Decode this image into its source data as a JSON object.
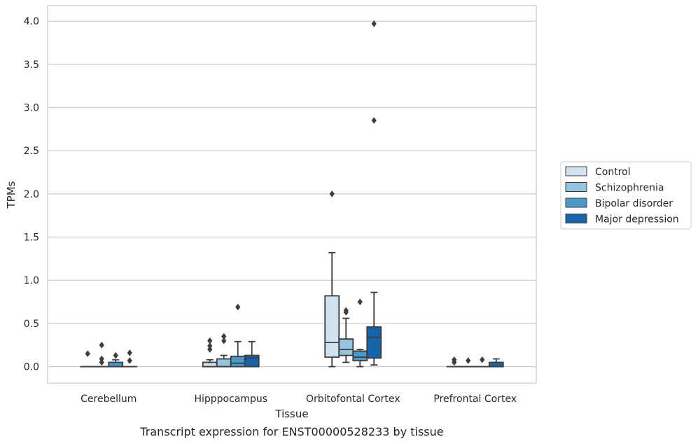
{
  "caption": "Transcript expression for ENST00000528233 by tissue",
  "chart_data": {
    "type": "box",
    "xlabel": "Tissue",
    "ylabel": "TPMs",
    "ylim": [
      -0.19,
      4.18
    ],
    "yticks": [
      0.0,
      0.5,
      1.0,
      1.5,
      2.0,
      2.5,
      3.0,
      3.5,
      4.0
    ],
    "ytick_labels": [
      "0.0",
      "0.5",
      "1.0",
      "1.5",
      "2.0",
      "2.5",
      "3.0",
      "3.5",
      "4.0"
    ],
    "grid": "horizontal",
    "legend_position": "right",
    "categories": [
      "Cerebellum",
      "Hipppocampus",
      "Orbitofontal Cortex",
      "Prefrontal Cortex"
    ],
    "series": [
      {
        "name": "Control",
        "color": "#d0e1f2",
        "boxes": [
          {
            "q1": 0.0,
            "median": 0.0,
            "q3": 0.0,
            "whisker_low": 0.0,
            "whisker_high": 0.0,
            "outliers": [
              0.15
            ]
          },
          {
            "q1": 0.0,
            "median": 0.0,
            "q3": 0.05,
            "whisker_low": 0.0,
            "whisker_high": 0.08,
            "outliers": [
              0.2,
              0.24,
              0.3
            ]
          },
          {
            "q1": 0.11,
            "median": 0.28,
            "q3": 0.82,
            "whisker_low": 0.0,
            "whisker_high": 1.32,
            "outliers": [
              2.0
            ]
          },
          {
            "q1": 0.0,
            "median": 0.0,
            "q3": 0.0,
            "whisker_low": 0.0,
            "whisker_high": 0.0,
            "outliers": [
              0.05,
              0.08
            ]
          }
        ]
      },
      {
        "name": "Schizophrenia",
        "color": "#94c4df",
        "boxes": [
          {
            "q1": 0.0,
            "median": 0.0,
            "q3": 0.0,
            "whisker_low": 0.0,
            "whisker_high": 0.0,
            "outliers": [
              0.05,
              0.09,
              0.25
            ]
          },
          {
            "q1": 0.0,
            "median": 0.0,
            "q3": 0.09,
            "whisker_low": 0.0,
            "whisker_high": 0.13,
            "outliers": [
              0.3,
              0.35
            ]
          },
          {
            "q1": 0.13,
            "median": 0.2,
            "q3": 0.32,
            "whisker_low": 0.05,
            "whisker_high": 0.56,
            "outliers": [
              0.63,
              0.65
            ]
          },
          {
            "q1": 0.0,
            "median": 0.0,
            "q3": 0.0,
            "whisker_low": 0.0,
            "whisker_high": 0.0,
            "outliers": [
              0.07
            ]
          }
        ]
      },
      {
        "name": "Bipolar disorder",
        "color": "#4a98c9",
        "boxes": [
          {
            "q1": 0.0,
            "median": 0.0,
            "q3": 0.05,
            "whisker_low": 0.0,
            "whisker_high": 0.08,
            "outliers": [
              0.13
            ]
          },
          {
            "q1": 0.0,
            "median": 0.04,
            "q3": 0.12,
            "whisker_low": 0.0,
            "whisker_high": 0.29,
            "outliers": [
              0.69
            ]
          },
          {
            "q1": 0.07,
            "median": 0.11,
            "q3": 0.18,
            "whisker_low": 0.0,
            "whisker_high": 0.2,
            "outliers": [
              0.75
            ]
          },
          {
            "q1": 0.0,
            "median": 0.0,
            "q3": 0.0,
            "whisker_low": 0.0,
            "whisker_high": 0.0,
            "outliers": [
              0.08
            ]
          }
        ]
      },
      {
        "name": "Major depression",
        "color": "#1764ab",
        "boxes": [
          {
            "q1": 0.0,
            "median": 0.0,
            "q3": 0.0,
            "whisker_low": 0.0,
            "whisker_high": 0.0,
            "outliers": [
              0.07,
              0.16
            ]
          },
          {
            "q1": 0.0,
            "median": 0.1,
            "q3": 0.13,
            "whisker_low": 0.0,
            "whisker_high": 0.29,
            "outliers": []
          },
          {
            "q1": 0.1,
            "median": 0.34,
            "q3": 0.46,
            "whisker_low": 0.02,
            "whisker_high": 0.86,
            "outliers": [
              2.85,
              3.97
            ]
          },
          {
            "q1": 0.0,
            "median": 0.0,
            "q3": 0.05,
            "whisker_low": 0.0,
            "whisker_high": 0.09,
            "outliers": []
          }
        ]
      }
    ]
  }
}
